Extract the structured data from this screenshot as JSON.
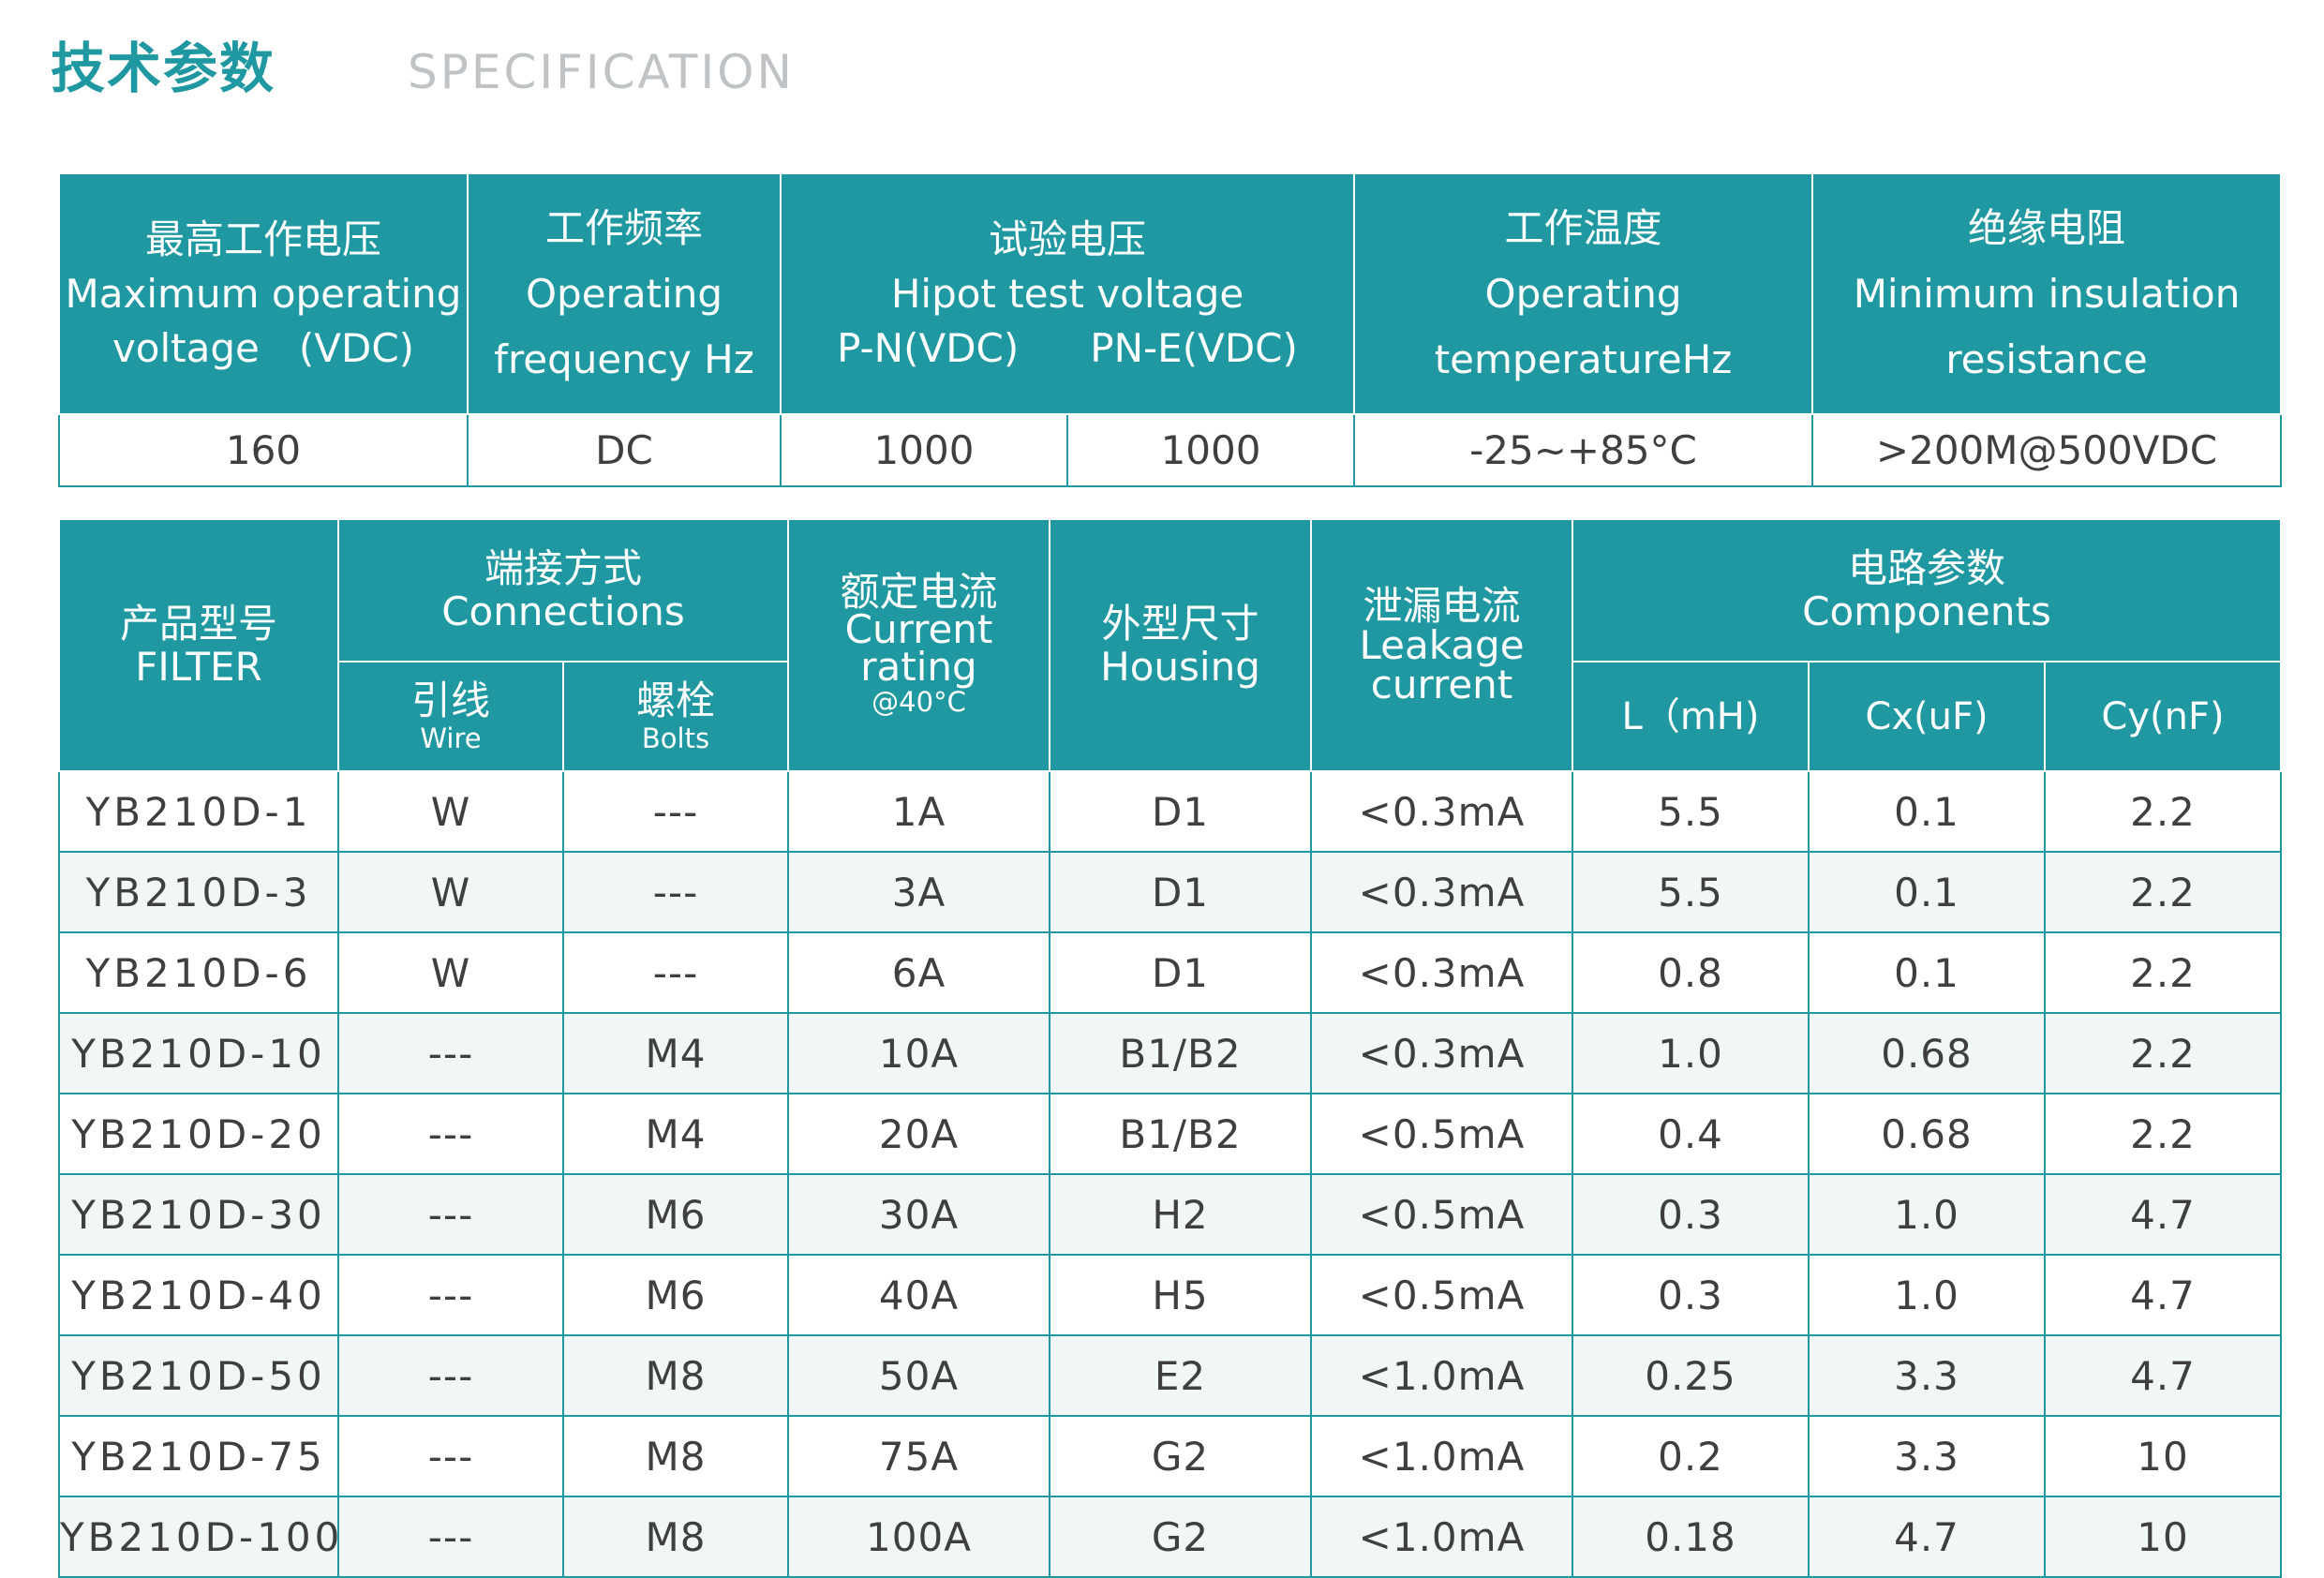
{
  "header": {
    "title_zh": "技术参数",
    "title_en": "SPECIFICATION"
  },
  "spec_table": {
    "headers": {
      "voltage": {
        "zh": "最高工作电压",
        "en1": "Maximum operating",
        "en2": "voltage　(VDC)"
      },
      "frequency": {
        "zh": "工作频率",
        "en1": "Operating",
        "en2": "frequency Hz"
      },
      "hipot": {
        "zh": "试验电压",
        "en1": "Hipot test voltage",
        "pn": "P-N(VDC)",
        "pne": "PN-E(VDC)"
      },
      "temperature": {
        "zh": "工作温度",
        "en1": "Operating",
        "en2": "temperatureHz"
      },
      "insulation": {
        "zh": "绝缘电阻",
        "en1": "Minimum insulation",
        "en2": "resistance"
      }
    },
    "values": {
      "voltage": "160",
      "frequency": "DC",
      "pn": "1000",
      "pne": "1000",
      "temperature": "-25~+85°C",
      "insulation": ">200M@500VDC"
    }
  },
  "model_table": {
    "headers": {
      "filter": {
        "zh": "产品型号",
        "en": "FILTER"
      },
      "connections": {
        "zh": "端接方式",
        "en": "Connections"
      },
      "wire": {
        "zh": "引线",
        "en": "Wire"
      },
      "bolts": {
        "zh": "螺栓",
        "en": "Bolts"
      },
      "current": {
        "zh": "额定电流",
        "en1": "Current",
        "en2": "rating",
        "note": "@40°C"
      },
      "housing": {
        "zh": "外型尺寸",
        "en": "Housing"
      },
      "leakage": {
        "zh": "泄漏电流",
        "en1": "Leakage",
        "en2": "current"
      },
      "components": {
        "zh": "电路参数",
        "en": "Components"
      },
      "l": "L（mH)",
      "cx": "Cx(uF)",
      "cy": "Cy(nF)"
    },
    "rows": [
      {
        "model": "YB210D-1",
        "wire": "W",
        "bolts": "---",
        "current": "1A",
        "housing": "D1",
        "leakage": "<0.3mA",
        "l": "5.5",
        "cx": "0.1",
        "cy": "2.2"
      },
      {
        "model": "YB210D-3",
        "wire": "W",
        "bolts": "---",
        "current": "3A",
        "housing": "D1",
        "leakage": "<0.3mA",
        "l": "5.5",
        "cx": "0.1",
        "cy": "2.2"
      },
      {
        "model": "YB210D-6",
        "wire": "W",
        "bolts": "---",
        "current": "6A",
        "housing": "D1",
        "leakage": "<0.3mA",
        "l": "0.8",
        "cx": "0.1",
        "cy": "2.2"
      },
      {
        "model": "YB210D-10",
        "wire": "---",
        "bolts": "M4",
        "current": "10A",
        "housing": "B1/B2",
        "leakage": "<0.3mA",
        "l": "1.0",
        "cx": "0.68",
        "cy": "2.2"
      },
      {
        "model": "YB210D-20",
        "wire": "---",
        "bolts": "M4",
        "current": "20A",
        "housing": "B1/B2",
        "leakage": "<0.5mA",
        "l": "0.4",
        "cx": "0.68",
        "cy": "2.2"
      },
      {
        "model": "YB210D-30",
        "wire": "---",
        "bolts": "M6",
        "current": "30A",
        "housing": "H2",
        "leakage": "<0.5mA",
        "l": "0.3",
        "cx": "1.0",
        "cy": "4.7"
      },
      {
        "model": "YB210D-40",
        "wire": "---",
        "bolts": "M6",
        "current": "40A",
        "housing": "H5",
        "leakage": "<0.5mA",
        "l": "0.3",
        "cx": "1.0",
        "cy": "4.7"
      },
      {
        "model": "YB210D-50",
        "wire": "---",
        "bolts": "M8",
        "current": "50A",
        "housing": "E2",
        "leakage": "<1.0mA",
        "l": "0.25",
        "cx": "3.3",
        "cy": "4.7"
      },
      {
        "model": "YB210D-75",
        "wire": "---",
        "bolts": "M8",
        "current": "75A",
        "housing": "G2",
        "leakage": "<1.0mA",
        "l": "0.2",
        "cx": "3.3",
        "cy": "10"
      },
      {
        "model": "YB210D-100",
        "wire": "---",
        "bolts": "M8",
        "current": "100A",
        "housing": "G2",
        "leakage": "<1.0mA",
        "l": "0.18",
        "cx": "4.7",
        "cy": "10"
      }
    ]
  },
  "colors": {
    "accent": "#1f98a1",
    "subtitle": "#bfc3c5",
    "text": "#3f3f3f",
    "row_alt": "#f1f6f6"
  }
}
